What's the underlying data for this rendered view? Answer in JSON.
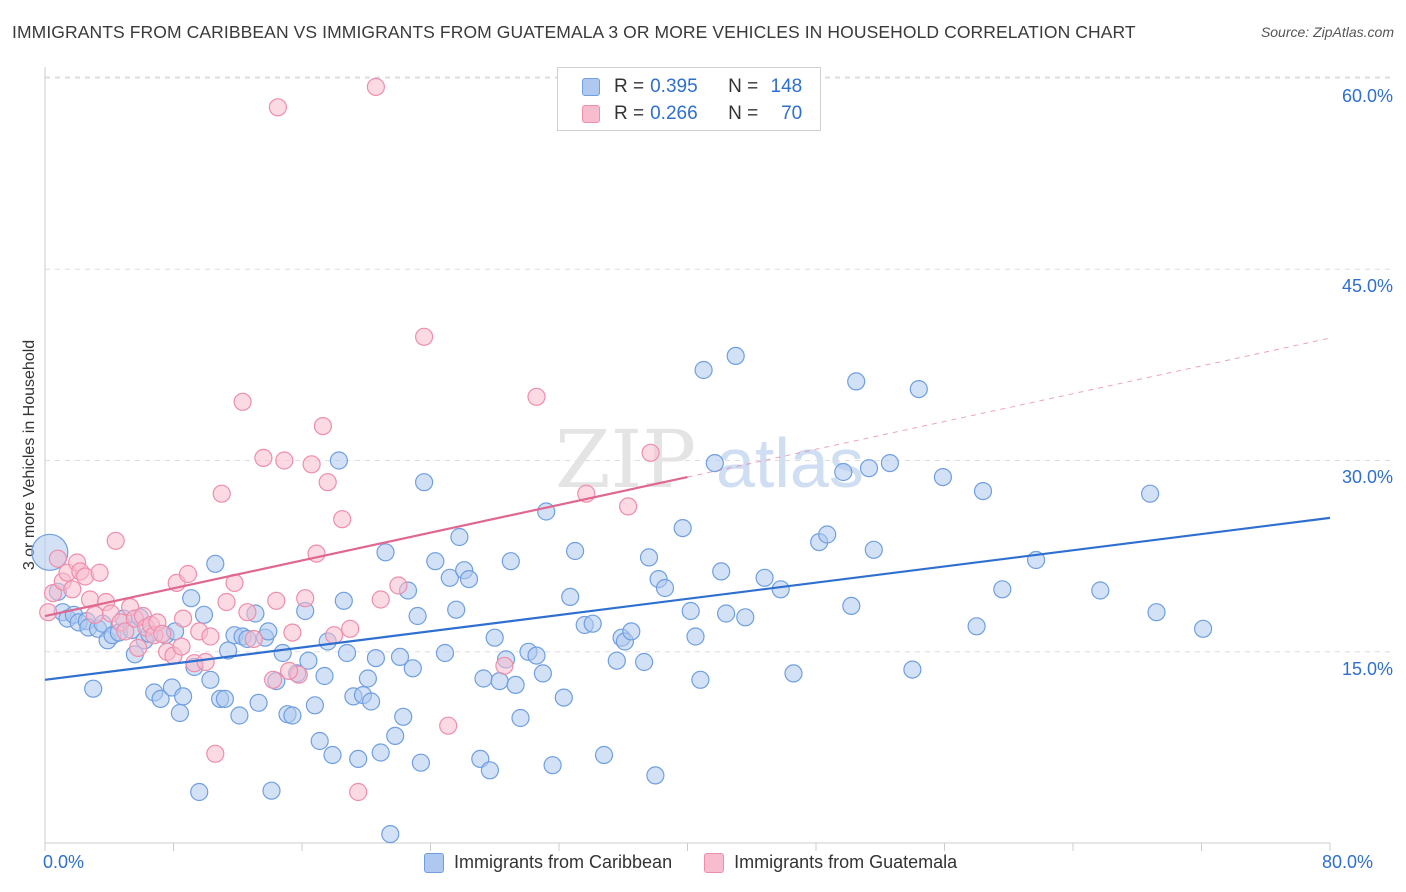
{
  "title": "IMMIGRANTS FROM CARIBBEAN VS IMMIGRANTS FROM GUATEMALA 3 OR MORE VEHICLES IN HOUSEHOLD CORRELATION CHART",
  "source": "Source: ZipAtlas.com",
  "watermark": {
    "zip": "ZIP",
    "atlas": "atlas"
  },
  "legend": {
    "rows": [
      {
        "r_label": "R =",
        "r_value": "0.395",
        "n_label": "N =",
        "n_value": "148"
      },
      {
        "r_label": "R =",
        "r_value": "0.266",
        "n_label": "N =",
        "n_value": "70"
      }
    ]
  },
  "bottom_legend": [
    "Immigrants from Caribbean",
    "Immigrants from Guatemala"
  ],
  "colors": {
    "caribbean_fill": "#aec8ef",
    "caribbean_stroke": "#6f9fe0",
    "caribbean_line": "#2e6fcf",
    "guatemala_fill": "#f7bccd",
    "guatemala_stroke": "#ee8eab",
    "guatemala_line": "#e0678f",
    "axis_text": "#2e6fcf",
    "grid": "#dddddd"
  },
  "chart_data": {
    "type": "scatter",
    "title": "IMMIGRANTS FROM CARIBBEAN VS IMMIGRANTS FROM GUATEMALA 3 OR MORE VEHICLES IN HOUSEHOLD CORRELATION CHART",
    "xlabel": "",
    "ylabel": "3 or more Vehicles in Household",
    "xlim": [
      0,
      80
    ],
    "ylim": [
      0,
      63
    ],
    "x_tick_labels": [
      "0.0%",
      "80.0%"
    ],
    "y_ticks": [
      15,
      30,
      45,
      60
    ],
    "y_tick_labels": [
      "15.0%",
      "30.0%",
      "45.0%",
      "60.0%"
    ],
    "grid": true,
    "legend_position": "top-center",
    "series": [
      {
        "name": "Immigrants from Caribbean",
        "r": 0.395,
        "n": 148,
        "trend": {
          "x": [
            0,
            80
          ],
          "y": [
            12.8,
            25.5
          ]
        },
        "points": [
          [
            0.3,
            22.8
          ],
          [
            0.8,
            19.7
          ],
          [
            1.1,
            18.1
          ],
          [
            1.4,
            17.6
          ],
          [
            1.8,
            17.9
          ],
          [
            2.1,
            17.3
          ],
          [
            2.6,
            17.4
          ],
          [
            2.7,
            16.9
          ],
          [
            3.0,
            12.1
          ],
          [
            3.3,
            16.8
          ],
          [
            3.6,
            17.2
          ],
          [
            3.9,
            15.9
          ],
          [
            4.2,
            16.3
          ],
          [
            4.6,
            16.5
          ],
          [
            4.9,
            17.6
          ],
          [
            5.4,
            16.7
          ],
          [
            5.6,
            14.8
          ],
          [
            5.9,
            17.7
          ],
          [
            6.2,
            15.9
          ],
          [
            6.5,
            16.4
          ],
          [
            6.8,
            11.8
          ],
          [
            7.2,
            11.3
          ],
          [
            7.5,
            16.3
          ],
          [
            7.9,
            12.2
          ],
          [
            8.1,
            16.6
          ],
          [
            8.4,
            10.2
          ],
          [
            8.6,
            11.5
          ],
          [
            9.1,
            19.2
          ],
          [
            9.3,
            13.8
          ],
          [
            9.6,
            4.0
          ],
          [
            9.9,
            17.9
          ],
          [
            10.3,
            12.8
          ],
          [
            10.6,
            21.9
          ],
          [
            10.9,
            11.3
          ],
          [
            11.2,
            11.3
          ],
          [
            11.4,
            15.1
          ],
          [
            11.8,
            16.3
          ],
          [
            12.3,
            16.2
          ],
          [
            12.1,
            10.0
          ],
          [
            12.6,
            16.0
          ],
          [
            13.1,
            18.0
          ],
          [
            13.3,
            11.0
          ],
          [
            13.7,
            16.1
          ],
          [
            13.9,
            16.6
          ],
          [
            14.1,
            4.1
          ],
          [
            14.4,
            12.7
          ],
          [
            14.8,
            14.9
          ],
          [
            15.1,
            10.1
          ],
          [
            15.4,
            10.0
          ],
          [
            15.7,
            13.3
          ],
          [
            16.2,
            18.2
          ],
          [
            16.4,
            14.3
          ],
          [
            16.8,
            10.8
          ],
          [
            17.1,
            8.0
          ],
          [
            17.4,
            13.1
          ],
          [
            17.6,
            15.8
          ],
          [
            17.9,
            6.9
          ],
          [
            18.3,
            30.0
          ],
          [
            18.6,
            19.0
          ],
          [
            18.8,
            14.9
          ],
          [
            19.2,
            11.5
          ],
          [
            19.5,
            6.6
          ],
          [
            19.8,
            11.6
          ],
          [
            20.1,
            12.9
          ],
          [
            20.3,
            11.1
          ],
          [
            20.6,
            14.5
          ],
          [
            20.9,
            7.1
          ],
          [
            21.2,
            22.8
          ],
          [
            21.5,
            0.7
          ],
          [
            21.8,
            8.4
          ],
          [
            22.1,
            14.6
          ],
          [
            22.3,
            9.9
          ],
          [
            22.6,
            19.8
          ],
          [
            22.9,
            13.7
          ],
          [
            23.2,
            17.8
          ],
          [
            23.4,
            6.3
          ],
          [
            23.6,
            28.3
          ],
          [
            24.3,
            22.1
          ],
          [
            24.9,
            14.9
          ],
          [
            25.2,
            20.8
          ],
          [
            25.6,
            18.3
          ],
          [
            25.8,
            24.0
          ],
          [
            26.1,
            21.4
          ],
          [
            26.4,
            20.7
          ],
          [
            27.1,
            6.6
          ],
          [
            27.3,
            12.9
          ],
          [
            27.7,
            5.7
          ],
          [
            28.0,
            16.1
          ],
          [
            28.3,
            12.7
          ],
          [
            28.7,
            14.4
          ],
          [
            29.0,
            22.1
          ],
          [
            29.3,
            12.4
          ],
          [
            29.6,
            9.8
          ],
          [
            30.1,
            15.0
          ],
          [
            30.6,
            14.7
          ],
          [
            31.0,
            13.3
          ],
          [
            31.2,
            26.0
          ],
          [
            31.6,
            6.1
          ],
          [
            32.3,
            11.4
          ],
          [
            32.7,
            19.3
          ],
          [
            33.0,
            22.9
          ],
          [
            33.6,
            17.1
          ],
          [
            34.1,
            17.2
          ],
          [
            34.8,
            6.9
          ],
          [
            35.6,
            14.3
          ],
          [
            35.9,
            16.1
          ],
          [
            36.1,
            15.8
          ],
          [
            36.5,
            16.6
          ],
          [
            37.3,
            14.2
          ],
          [
            37.6,
            22.4
          ],
          [
            38.0,
            5.3
          ],
          [
            38.2,
            20.7
          ],
          [
            38.6,
            20.0
          ],
          [
            39.7,
            24.7
          ],
          [
            40.2,
            18.2
          ],
          [
            40.5,
            16.2
          ],
          [
            40.8,
            12.8
          ],
          [
            41.0,
            37.1
          ],
          [
            41.7,
            29.8
          ],
          [
            42.1,
            21.3
          ],
          [
            42.4,
            18.0
          ],
          [
            43.0,
            38.2
          ],
          [
            43.6,
            17.7
          ],
          [
            44.8,
            20.8
          ],
          [
            45.8,
            19.9
          ],
          [
            46.6,
            13.3
          ],
          [
            48.2,
            23.6
          ],
          [
            48.7,
            24.2
          ],
          [
            49.7,
            29.1
          ],
          [
            50.2,
            18.6
          ],
          [
            50.5,
            36.2
          ],
          [
            51.3,
            29.4
          ],
          [
            51.6,
            23.0
          ],
          [
            52.6,
            29.8
          ],
          [
            54.0,
            13.6
          ],
          [
            54.4,
            35.6
          ],
          [
            55.9,
            28.7
          ],
          [
            58.0,
            17.0
          ],
          [
            58.4,
            27.6
          ],
          [
            59.6,
            19.9
          ],
          [
            61.7,
            22.2
          ],
          [
            65.7,
            19.8
          ],
          [
            68.8,
            27.4
          ],
          [
            69.2,
            18.1
          ],
          [
            72.1,
            16.8
          ]
        ]
      },
      {
        "name": "Immigrants from Guatemala",
        "r": 0.266,
        "n": 70,
        "trend": {
          "x": [
            0,
            40
          ],
          "y": [
            17.8,
            28.7
          ],
          "dashed_to": {
            "x": 80,
            "y": 39.6
          }
        },
        "points": [
          [
            0.2,
            18.1
          ],
          [
            0.5,
            19.6
          ],
          [
            0.8,
            22.3
          ],
          [
            1.1,
            20.5
          ],
          [
            1.4,
            21.2
          ],
          [
            1.7,
            19.9
          ],
          [
            2.0,
            22.0
          ],
          [
            2.2,
            21.3
          ],
          [
            2.5,
            20.9
          ],
          [
            2.8,
            19.1
          ],
          [
            3.1,
            17.9
          ],
          [
            3.4,
            21.2
          ],
          [
            3.8,
            18.9
          ],
          [
            4.1,
            18.0
          ],
          [
            4.4,
            23.7
          ],
          [
            4.7,
            17.3
          ],
          [
            5.0,
            16.6
          ],
          [
            5.3,
            18.5
          ],
          [
            5.6,
            17.6
          ],
          [
            5.8,
            15.3
          ],
          [
            6.1,
            17.8
          ],
          [
            6.3,
            16.9
          ],
          [
            6.6,
            17.1
          ],
          [
            6.8,
            16.3
          ],
          [
            7.0,
            17.3
          ],
          [
            7.3,
            16.4
          ],
          [
            7.6,
            15.0
          ],
          [
            8.0,
            14.7
          ],
          [
            8.2,
            20.4
          ],
          [
            8.5,
            15.4
          ],
          [
            8.6,
            17.6
          ],
          [
            8.9,
            21.1
          ],
          [
            9.3,
            14.1
          ],
          [
            9.6,
            16.6
          ],
          [
            10.0,
            14.2
          ],
          [
            10.3,
            16.2
          ],
          [
            10.6,
            7.0
          ],
          [
            11.0,
            27.4
          ],
          [
            11.3,
            18.9
          ],
          [
            11.8,
            20.4
          ],
          [
            12.3,
            34.6
          ],
          [
            12.6,
            18.1
          ],
          [
            13.0,
            16.0
          ],
          [
            13.6,
            30.2
          ],
          [
            14.2,
            12.8
          ],
          [
            14.4,
            19.0
          ],
          [
            14.9,
            30.0
          ],
          [
            15.4,
            16.5
          ],
          [
            15.8,
            13.2
          ],
          [
            16.2,
            19.2
          ],
          [
            16.6,
            29.7
          ],
          [
            16.9,
            22.7
          ],
          [
            17.3,
            32.7
          ],
          [
            17.6,
            28.3
          ],
          [
            18.0,
            16.3
          ],
          [
            18.5,
            25.4
          ],
          [
            19.0,
            16.8
          ],
          [
            19.5,
            4.0
          ],
          [
            20.6,
            59.3
          ],
          [
            20.9,
            19.1
          ],
          [
            22.0,
            20.2
          ],
          [
            23.6,
            39.7
          ],
          [
            25.1,
            9.2
          ],
          [
            28.6,
            13.9
          ],
          [
            30.6,
            35.0
          ],
          [
            33.7,
            27.4
          ],
          [
            36.3,
            26.4
          ],
          [
            37.7,
            30.6
          ],
          [
            14.5,
            57.7
          ],
          [
            15.2,
            13.5
          ]
        ]
      }
    ]
  }
}
